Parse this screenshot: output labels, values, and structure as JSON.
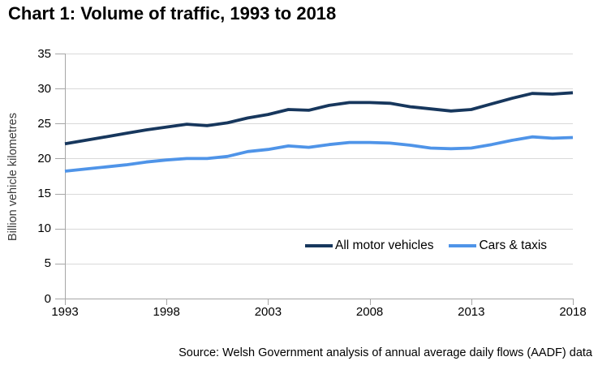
{
  "title": "Chart 1: Volume of traffic, 1993 to 2018",
  "y_axis_label": "Billion vehicle kilometres",
  "source_note": "Source: Welsh Government analysis of annual average daily flows (AADF) data",
  "legend": {
    "items": [
      {
        "label": "All motor vehicles",
        "color": "#17375d"
      },
      {
        "label": "Cars & taxis",
        "color": "#4f94e8"
      }
    ]
  },
  "axes": {
    "y_ticks": [
      "0",
      "5",
      "10",
      "15",
      "20",
      "25",
      "30",
      "35"
    ],
    "x_ticks": [
      "1993",
      "1998",
      "2003",
      "2008",
      "2013",
      "2018"
    ]
  },
  "styles": {
    "axis_color": "#a6a6a6",
    "grid_color": "#d9d9d9",
    "dark_line_color": "#17375d",
    "light_line_color": "#4f94e8",
    "text_color": "#000000"
  },
  "chart_data": {
    "type": "line",
    "title": "Chart 1: Volume of traffic, 1993 to 2018",
    "xlabel": "",
    "ylabel": "Billion vehicle kilometres",
    "ylim": [
      0,
      35
    ],
    "xlim": [
      1993,
      2018
    ],
    "grid": "horizontal",
    "legend_position": "inside-bottom-right",
    "x": [
      1993,
      1994,
      1995,
      1996,
      1997,
      1998,
      1999,
      2000,
      2001,
      2002,
      2003,
      2004,
      2005,
      2006,
      2007,
      2008,
      2009,
      2010,
      2011,
      2012,
      2013,
      2014,
      2015,
      2016,
      2017,
      2018
    ],
    "series": [
      {
        "name": "All motor vehicles",
        "color": "#17375d",
        "values": [
          22.1,
          22.6,
          23.1,
          23.6,
          24.1,
          24.5,
          24.9,
          24.7,
          25.1,
          25.8,
          26.3,
          27.0,
          26.9,
          27.6,
          28.0,
          28.0,
          27.9,
          27.4,
          27.1,
          26.8,
          27.0,
          27.8,
          28.6,
          29.3,
          29.2,
          29.4
        ]
      },
      {
        "name": "Cars & taxis",
        "color": "#4f94e8",
        "values": [
          18.2,
          18.5,
          18.8,
          19.1,
          19.5,
          19.8,
          20.0,
          20.0,
          20.3,
          21.0,
          21.3,
          21.8,
          21.6,
          22.0,
          22.3,
          22.3,
          22.2,
          21.9,
          21.5,
          21.4,
          21.5,
          22.0,
          22.6,
          23.1,
          22.9,
          23.0
        ]
      }
    ],
    "source": "Source: Welsh Government analysis of annual average daily flows (AADF) data"
  }
}
